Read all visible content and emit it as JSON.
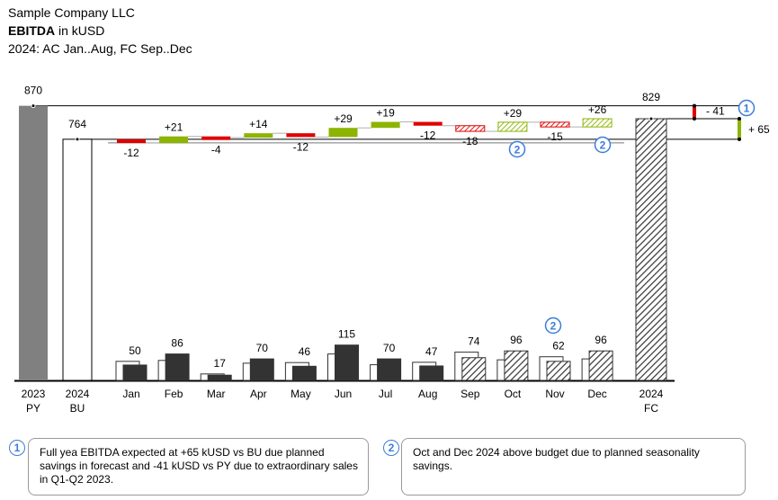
{
  "header": {
    "company": "Sample Company LLC",
    "measure_bold": "EBITDA",
    "measure_unit": " in kUSD",
    "period": "2024: AC Jan..Aug, FC Sep..Dec"
  },
  "colors": {
    "actual": "#333333",
    "py": "#808080",
    "positive": "#8cb400",
    "negative": "#e00000",
    "badge": "#3b7dd8"
  },
  "chart_data": {
    "type": "bar",
    "months": [
      "Jan",
      "Feb",
      "Mar",
      "Apr",
      "May",
      "Jun",
      "Jul",
      "Aug",
      "Sep",
      "Oct",
      "Nov",
      "Dec"
    ],
    "forecast_from_index": 8,
    "monthly": {
      "series": [
        {
          "name": "AC/FC",
          "values": [
            50,
            86,
            17,
            70,
            46,
            115,
            70,
            47,
            74,
            96,
            62,
            96
          ]
        },
        {
          "name": "BU",
          "values": [
            62,
            65,
            21,
            56,
            58,
            86,
            51,
            59,
            92,
            67,
            77,
            70
          ]
        }
      ]
    },
    "deltas": {
      "values": [
        -12,
        21,
        -4,
        14,
        -12,
        29,
        19,
        -12,
        -18,
        29,
        -15,
        26
      ],
      "labels": [
        "-12",
        "+21",
        "-4",
        "+14",
        "-12",
        "+29",
        "+19",
        "-12",
        "-18",
        "+29",
        "-15",
        "+26"
      ]
    },
    "totals": [
      {
        "category_top": "2023",
        "category_bottom": "PY",
        "value": 870,
        "label": "870",
        "kind": "py"
      },
      {
        "category_top": "2024",
        "category_bottom": "BU",
        "value": 764,
        "label": "764",
        "kind": "bu"
      },
      {
        "category_top": "2024",
        "category_bottom": "FC",
        "value": 829,
        "label": "829",
        "kind": "fc"
      }
    ],
    "variances": [
      {
        "label": "- 41",
        "value": -41,
        "versus": "PY"
      },
      {
        "label": "+ 65",
        "value": 65,
        "versus": "BU"
      }
    ],
    "markers": {
      "badge_1": "1",
      "badge_2": "2"
    }
  },
  "notes": [
    {
      "badge": "1",
      "text": "Full yea EBITDA expected at +65 kUSD vs BU due planned savings in forecast and -41 kUSD vs PY due to extraordinary sales in Q1-Q2 2023."
    },
    {
      "badge": "2",
      "text": "Oct and Dec 2024 above budget due to planned seasonality savings."
    }
  ]
}
